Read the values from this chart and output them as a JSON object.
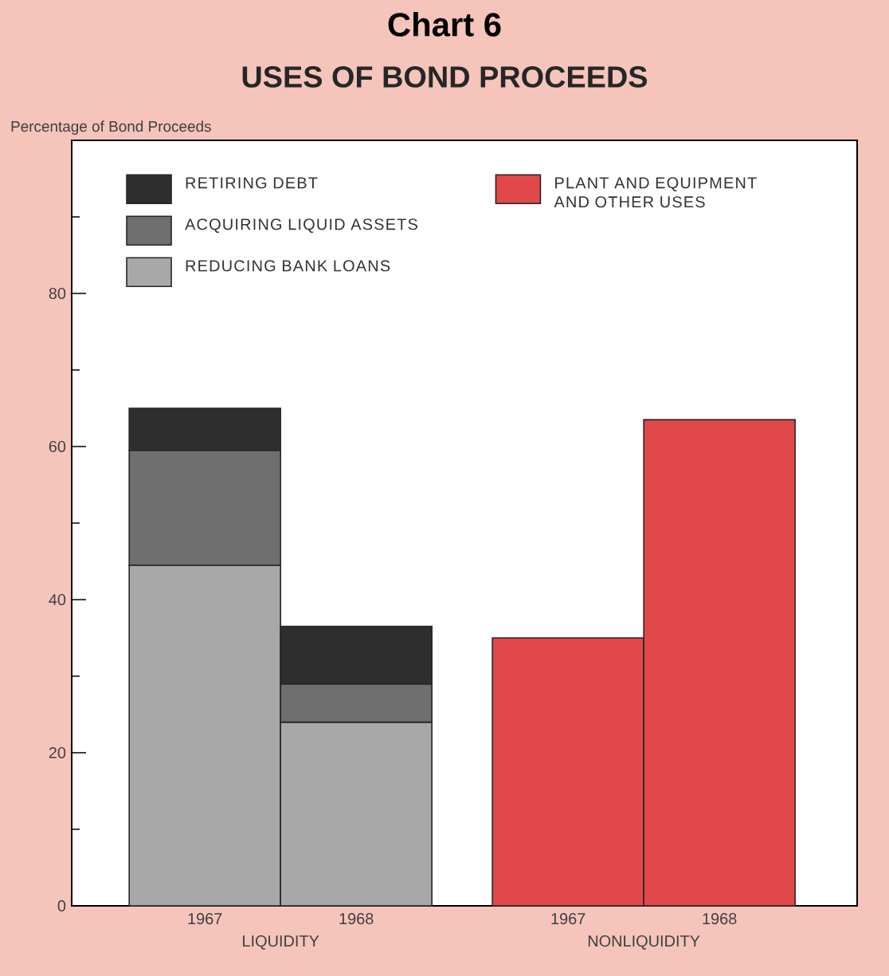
{
  "chart_data": {
    "type": "bar",
    "title": "Chart 6",
    "subtitle": "USES OF BOND PROCEEDS",
    "ylabel": "Percentage of Bond Proceeds",
    "categories": [
      "1967",
      "1968",
      "1967",
      "1968"
    ],
    "annotations": [
      "LIQUIDITY",
      "NONLIQUIDITY"
    ],
    "stacked": true,
    "series": [
      {
        "name": "REDUCING BANK LOANS",
        "color": "#a8a8a8",
        "values": [
          44.5,
          24,
          null,
          null
        ]
      },
      {
        "name": "ACQUIRING LIQUID ASSETS",
        "color": "#6f6f6f",
        "values": [
          15,
          5,
          null,
          null
        ]
      },
      {
        "name": "RETIRING DEBT",
        "color": "#2e2e2e",
        "values": [
          5.5,
          7.5,
          null,
          null
        ]
      },
      {
        "name": "PLANT AND EQUIPMENT AND OTHER USES",
        "color": "#e0484a",
        "values": [
          null,
          null,
          35,
          63.5
        ]
      }
    ],
    "ylim": [
      0,
      100
    ],
    "yticks": [
      0,
      {
        "value": 10,
        "label": null
      },
      20,
      {
        "value": 30,
        "label": null
      },
      40,
      {
        "value": 50,
        "label": null
      },
      60,
      {
        "value": 70,
        "label": null
      },
      80,
      {
        "value": 90,
        "label": null
      }
    ],
    "legend": "top"
  }
}
